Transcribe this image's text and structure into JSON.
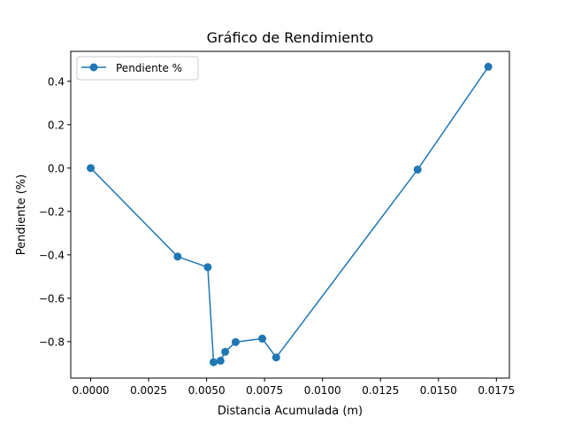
{
  "chart_data": {
    "type": "line",
    "title": "Gráfico de Rendimiento",
    "xlabel": "Distancia Acumulada (m)",
    "ylabel": "Pendiente (%)",
    "xlim": [
      -0.00086,
      0.01806
    ],
    "ylim": [
      -0.968,
      0.538
    ],
    "x_ticks": [
      0.0,
      0.0025,
      0.005,
      0.0075,
      0.01,
      0.0125,
      0.015,
      0.0175
    ],
    "x_tick_labels": [
      "0.0000",
      "0.0025",
      "0.0050",
      "0.0075",
      "0.0100",
      "0.0125",
      "0.0150",
      "0.0175"
    ],
    "y_ticks": [
      -0.8,
      -0.6,
      -0.4,
      -0.2,
      0.0,
      0.2,
      0.4
    ],
    "y_tick_labels": [
      "−0.8",
      "−0.6",
      "−0.4",
      "−0.2",
      "0.0",
      "0.2",
      "0.4"
    ],
    "grid": false,
    "legend_position": "top-left",
    "series": [
      {
        "name": "Pendiente %",
        "color": "#1f77b4",
        "marker": "circle",
        "x": [
          0.0,
          0.00375,
          0.00505,
          0.0053,
          0.0056,
          0.0058,
          0.00625,
          0.0074,
          0.008,
          0.0141,
          0.01715
        ],
        "y": [
          0.0,
          -0.408,
          -0.457,
          -0.895,
          -0.888,
          -0.847,
          -0.802,
          -0.786,
          -0.873,
          -0.007,
          0.467
        ]
      }
    ]
  }
}
